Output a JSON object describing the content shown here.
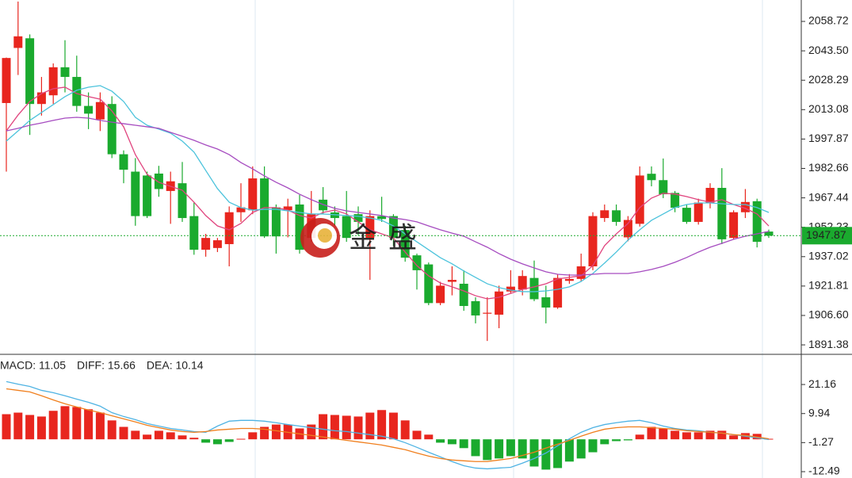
{
  "chart_data": [
    {
      "type": "candlestick",
      "up_color": "#e8261e",
      "down_color": "#1aaa2e",
      "open": [
        2016.5,
        2045,
        2050,
        2016,
        2020.5,
        2035,
        2030,
        2015,
        2008,
        2016,
        1990,
        1981,
        1979,
        1980,
        1971,
        1975,
        1958,
        1940.6,
        1941.5,
        1943.5,
        1960,
        1961,
        1977.5,
        1962.5,
        1961,
        1964,
        1946.7,
        1966.5,
        1959.9,
        1958,
        1959,
        1946.7,
        1958,
        1958,
        1950.8,
        1937.7,
        1933,
        1913,
        1924,
        1923,
        1914,
        1907.5,
        1907,
        1919,
        1920,
        1926,
        1916,
        1910.7,
        1924.5,
        1925.5,
        1932,
        1957,
        1961,
        1947,
        1954,
        1979.9,
        1976.6,
        1970,
        1962.3,
        1955,
        1965,
        1972.6,
        1946.7,
        1960,
        1965.7,
        1950
      ],
      "high": [
        2040,
        2069,
        2052,
        2030,
        2037,
        2049,
        2041,
        2022,
        2022,
        2020,
        1992,
        1988,
        1981,
        1984,
        1981,
        1986,
        1965,
        1948.8,
        1946.7,
        1963,
        1975,
        1983.7,
        1983.7,
        1964,
        1967,
        1969,
        1971,
        1973,
        1963,
        1971,
        1963,
        1961,
        1968,
        1959,
        1953,
        1938.6,
        1934,
        1924,
        1932,
        1930,
        1916,
        1916,
        1922,
        1930,
        1930,
        1935,
        1922,
        1928,
        1928,
        1938.6,
        1960,
        1964,
        1964,
        1958,
        1983.7,
        1983.7,
        1987.8,
        1971,
        1964,
        1967,
        1975,
        1982.8,
        1961,
        1972,
        1967,
        1951
      ],
      "low": [
        1981,
        2031,
        2000,
        2010,
        2016,
        2022,
        2012,
        2003,
        2002,
        1988,
        1975,
        1953,
        1957,
        1968,
        1954,
        1955,
        1938,
        1937,
        1939.4,
        1932,
        1955,
        1959,
        1946.7,
        1938.6,
        1947,
        1938.6,
        1944.7,
        1959,
        1953,
        1944.7,
        1948,
        1925,
        1955,
        1942.6,
        1934.4,
        1920,
        1911.9,
        1911.9,
        1917,
        1909,
        1902.5,
        1893.4,
        1900,
        1918,
        1917,
        1914,
        1902.5,
        1910,
        1923,
        1924,
        1930,
        1955,
        1953,
        1945,
        1952.6,
        1973.4,
        1967.3,
        1960,
        1954,
        1953.6,
        1962,
        1943.5,
        1946,
        1957,
        1941.8,
        1946.7
      ],
      "close": [
        2039.8,
        2051,
        2016,
        2022,
        2035,
        2030,
        2015,
        2011,
        2017,
        1990,
        1982,
        1958,
        1958,
        1972,
        1976,
        1957,
        1940.6,
        1946.7,
        1945.5,
        1960,
        1962.5,
        1977.5,
        1947.5,
        1947.5,
        1963,
        1940.6,
        1959,
        1961,
        1957,
        1946.7,
        1955,
        1958,
        1956.5,
        1946.7,
        1936.5,
        1930,
        1913,
        1922,
        1925,
        1911.5,
        1906.6,
        1908,
        1919,
        1921.5,
        1927,
        1915,
        1910.7,
        1926,
        1925.5,
        1932,
        1958,
        1961,
        1955,
        1956,
        1979,
        1976.6,
        1969.3,
        1962.3,
        1955,
        1965,
        1972.6,
        1946,
        1960,
        1965.3,
        1944.7,
        1947.87
      ],
      "series": [
        {
          "name": "MA5",
          "color": "#e0447e",
          "values": [
            2002.1,
            2010.3,
            2017.3,
            2021.4,
            2023.9,
            2024.7,
            2021.4,
            2019.8,
            2018.5,
            2012.4,
            2004.2,
            1989.8,
            1979.6,
            1975.5,
            1973.4,
            1971.4,
            1965.2,
            1958.3,
            1952.9,
            1950.9,
            1954.2,
            1959.9,
            1962.4,
            1962.4,
            1961.1,
            1958.3,
            1957,
            1959.9,
            1961.1,
            1959.1,
            1955,
            1950.9,
            1948.8,
            1946.7,
            1939.4,
            1932.4,
            1927.1,
            1923.4,
            1921.4,
            1919.3,
            1916.8,
            1915.2,
            1916,
            1918,
            1920.1,
            1921.4,
            1923,
            1925.5,
            1926.3,
            1927.1,
            1932.4,
            1942.7,
            1948.8,
            1954.2,
            1962.4,
            1967.3,
            1969.8,
            1969.4,
            1968.1,
            1966.5,
            1965.2,
            1966.5,
            1964,
            1962,
            1959.1,
            1952.9
          ]
        },
        {
          "name": "MA10",
          "color": "#4cc3dc",
          "values": [
            1996.8,
            2002.1,
            2007.5,
            2011.6,
            2015.7,
            2019.8,
            2023.1,
            2024.7,
            2025.5,
            2022.6,
            2017.3,
            2009.1,
            2005,
            2003,
            2000.9,
            1996.8,
            1991.1,
            1981.6,
            1972.2,
            1965.2,
            1962.4,
            1961.1,
            1961.5,
            1961.5,
            1960.7,
            1959.9,
            1959.1,
            1959.1,
            1958.7,
            1958.3,
            1957.9,
            1957,
            1955.8,
            1952.9,
            1948.8,
            1944.7,
            1940.6,
            1936.5,
            1933.3,
            1929.6,
            1926.3,
            1923,
            1921,
            1919.7,
            1918.9,
            1918.9,
            1919.3,
            1920.1,
            1921.4,
            1924.2,
            1928.3,
            1933.7,
            1939.4,
            1945.6,
            1950.9,
            1955.8,
            1959.1,
            1962.4,
            1964,
            1964.8,
            1964.8,
            1964.4,
            1964,
            1964,
            1962.4,
            1959.9
          ]
        },
        {
          "name": "MA20",
          "color": "#a64cc0",
          "values": [
            2002.1,
            2003.4,
            2005,
            2006.2,
            2007.5,
            2008.7,
            2009.1,
            2008.7,
            2007.5,
            2006.6,
            2005.8,
            2005,
            2004.2,
            2003.4,
            2001.3,
            1999.3,
            1997.2,
            1994.8,
            1992.7,
            1989.8,
            1985.7,
            1982.4,
            1978.8,
            1975.5,
            1972.6,
            1969.3,
            1966.5,
            1964,
            1962,
            1960.7,
            1959.9,
            1959.1,
            1958.3,
            1957,
            1956.2,
            1955,
            1952.9,
            1950.9,
            1949.2,
            1947.6,
            1944.7,
            1941.9,
            1938.6,
            1935.7,
            1933.3,
            1931.2,
            1929.2,
            1927.9,
            1927.5,
            1927.5,
            1927.9,
            1928.3,
            1928.3,
            1928.3,
            1929.2,
            1930.4,
            1932,
            1934.1,
            1936.6,
            1939.4,
            1941.9,
            1943.9,
            1946,
            1947.6,
            1948.8,
            1950.1
          ]
        }
      ],
      "ylim": [
        1887.3,
        2069.8
      ],
      "yticks": [
        2058.72,
        {
          "value": 2043.5,
          "label": "2043.50"
        },
        2028.29,
        2013.08,
        1997.87,
        1982.66,
        1967.44,
        1952.23,
        1937.02,
        1921.81,
        {
          "value": 1906.6,
          "label": "1906.60"
        },
        1891.38
      ],
      "last_price": 1947.87,
      "watermark": "金盛"
    },
    {
      "type": "macd",
      "legend": [
        "MACD: 11.05",
        "DIFF: 15.66",
        "DEA: 10.14"
      ],
      "legend_colors": [
        "#e8261e",
        "#3a9fdc",
        "#f07f1e"
      ],
      "up_color": "#e8261e",
      "down_color": "#1aaa2e",
      "values": [
        9.7,
        10.3,
        9.4,
        8.8,
        11,
        12.8,
        12.5,
        11.6,
        10.3,
        7.3,
        4.8,
        3.3,
        1.8,
        3.3,
        2.7,
        1.5,
        0.6,
        -1.3,
        -1.9,
        -1,
        0.2,
        2.7,
        4.8,
        5.7,
        5.7,
        4.2,
        5.7,
        9.7,
        9.4,
        9.1,
        8.8,
        10.3,
        11.3,
        10.3,
        7.3,
        3.3,
        1.8,
        -1.3,
        -1.9,
        -3.4,
        -6.5,
        -8,
        -7.4,
        -6.5,
        -7.4,
        -10.5,
        -11.7,
        -11.1,
        -8.6,
        -7.4,
        -5,
        -1.9,
        -0.7,
        -0.4,
        1.8,
        4.8,
        4.2,
        3.3,
        2.7,
        2.7,
        3.3,
        3.3,
        1.5,
        2.4,
        2.1,
        0.2
      ],
      "series": [
        {
          "name": "DIFF",
          "color": "#4fb3e3",
          "values": [
            22.3,
            21.3,
            20.4,
            18.9,
            18,
            16.8,
            15.5,
            14.3,
            12.8,
            10.3,
            8.8,
            7.6,
            6.1,
            5.1,
            4.2,
            3.6,
            3,
            2.7,
            5.1,
            7,
            7.3,
            7.3,
            7,
            6.4,
            5.7,
            5.1,
            4.5,
            3.9,
            3.3,
            3,
            2.4,
            1.8,
            1.2,
            0.2,
            -1.3,
            -3.1,
            -5,
            -6.8,
            -8.6,
            -10.2,
            -11.1,
            -11.4,
            -11.1,
            -10.8,
            -9.2,
            -7.4,
            -5.3,
            -2.5,
            0.2,
            2.7,
            4.5,
            5.7,
            6.4,
            7,
            7.3,
            6.4,
            5.1,
            4.2,
            3.6,
            3.3,
            2.7,
            2.4,
            1.8,
            1.2,
            0.6,
            -0.1
          ]
        },
        {
          "name": "DEA",
          "color": "#f07f1e",
          "values": [
            19.5,
            18.9,
            18.3,
            16.8,
            15.2,
            13.7,
            12.5,
            11.3,
            10.3,
            9.1,
            7.9,
            6.7,
            5.4,
            4.5,
            3.6,
            3,
            2.7,
            3,
            3.6,
            3.9,
            4.2,
            4.2,
            3.9,
            3.3,
            2.7,
            2.1,
            1.5,
            0.9,
            0.2,
            -0.4,
            -1,
            -1.6,
            -2.2,
            -3.1,
            -4,
            -5.3,
            -6.5,
            -7.4,
            -8,
            -8.3,
            -8.6,
            -8.6,
            -8,
            -7.4,
            -6.2,
            -5,
            -3.4,
            -1.9,
            -0.4,
            1.2,
            2.7,
            3.9,
            4.5,
            4.8,
            4.8,
            4.5,
            4.2,
            3.9,
            3.3,
            3,
            2.7,
            2.4,
            1.8,
            1.5,
            0.9,
            0.2
          ]
        }
      ],
      "ylim": [
        -14.94,
        32.5
      ],
      "yticks": [
        21.16,
        9.94,
        -1.27,
        -12.49
      ]
    }
  ]
}
